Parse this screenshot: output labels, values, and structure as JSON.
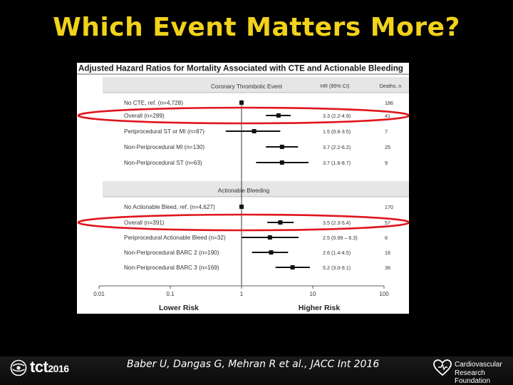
{
  "slide": {
    "title": "Which Event Matters More?",
    "citation": "Baber U, Dangas G, Mehran R et al., JACC Int 2016"
  },
  "logos": {
    "left_brand": "tct",
    "left_year": "2016",
    "right_line1": "Cardiovascular",
    "right_line2": "Research Foundation"
  },
  "chart_data": {
    "type": "forest",
    "title": "Adjusted Hazard Ratios for Mortality Associated with CTE and Actionable Bleeding",
    "column_headers": {
      "hr": "HR (95% CI)",
      "deaths": "Deaths, n"
    },
    "x_scale": "log",
    "xlim": [
      0.01,
      100
    ],
    "x_ticks": [
      {
        "value": 0.01,
        "label": "0.01"
      },
      {
        "value": 0.1,
        "label": "0.1"
      },
      {
        "value": 1,
        "label": "1"
      },
      {
        "value": 10,
        "label": "10"
      },
      {
        "value": 100,
        "label": "100"
      }
    ],
    "x_annotations": {
      "left": "Lower Risk",
      "right": "Higher Risk"
    },
    "reference_line": 1,
    "sections": [
      {
        "header": "Coronary Thrombotic Event",
        "rows": [
          {
            "label": "No CTE, ref. (n=4,728)",
            "hr": 1,
            "lo": 1,
            "hi": 1,
            "ci_text": "",
            "deaths": "186",
            "reference": true,
            "highlight": false
          },
          {
            "label": "Overall (n=289)",
            "hr": 3.3,
            "lo": 2.2,
            "hi": 4.9,
            "ci_text": "3.3 (2.2-4.9)",
            "deaths": "41",
            "reference": false,
            "highlight": true
          },
          {
            "label": "Periprocedural ST or MI (n=87)",
            "hr": 1.5,
            "lo": 0.6,
            "hi": 3.5,
            "ci_text": "1.5 (0.6-3.5)",
            "deaths": "7",
            "reference": false,
            "highlight": false
          },
          {
            "label": "Non-Periprocedural MI (n=130)",
            "hr": 3.7,
            "lo": 2.2,
            "hi": 6.2,
            "ci_text": "3.7 (2.2-6.2)",
            "deaths": "25",
            "reference": false,
            "highlight": false
          },
          {
            "label": "Non-Periprocedural ST (n=63)",
            "hr": 3.7,
            "lo": 1.6,
            "hi": 8.7,
            "ci_text": "3.7 (1.6-8.7)",
            "deaths": "9",
            "reference": false,
            "highlight": false
          }
        ]
      },
      {
        "header": "Actionable Bleeding",
        "rows": [
          {
            "label": "No Actionable Bleed, ref. (n=4,627)",
            "hr": 1,
            "lo": 1,
            "hi": 1,
            "ci_text": "",
            "deaths": "170",
            "reference": true,
            "highlight": false
          },
          {
            "label": "Overall (n=391)",
            "hr": 3.5,
            "lo": 2.3,
            "hi": 5.4,
            "ci_text": "3.5 (2.3-5.4)",
            "deaths": "57",
            "reference": false,
            "highlight": true
          },
          {
            "label": "Periprocedural Actionable Bleed (n=32)",
            "hr": 2.5,
            "lo": 0.99,
            "hi": 6.3,
            "ci_text": "2.5 (0.99 – 6.3)",
            "deaths": "6",
            "reference": false,
            "highlight": false
          },
          {
            "label": "Non-Periprocedural BARC 2 (n=190)",
            "hr": 2.6,
            "lo": 1.4,
            "hi": 4.5,
            "ci_text": "2.6 (1.4-4.5)",
            "deaths": "16",
            "reference": false,
            "highlight": false
          },
          {
            "label": "Non-Periprocedural BARC 3 (n=169)",
            "hr": 5.2,
            "lo": 3.0,
            "hi": 9.1,
            "ci_text": "5.2 (3.0-9.1)",
            "deaths": "36",
            "reference": false,
            "highlight": false
          }
        ]
      }
    ],
    "annotation_color": "#e0151d"
  }
}
